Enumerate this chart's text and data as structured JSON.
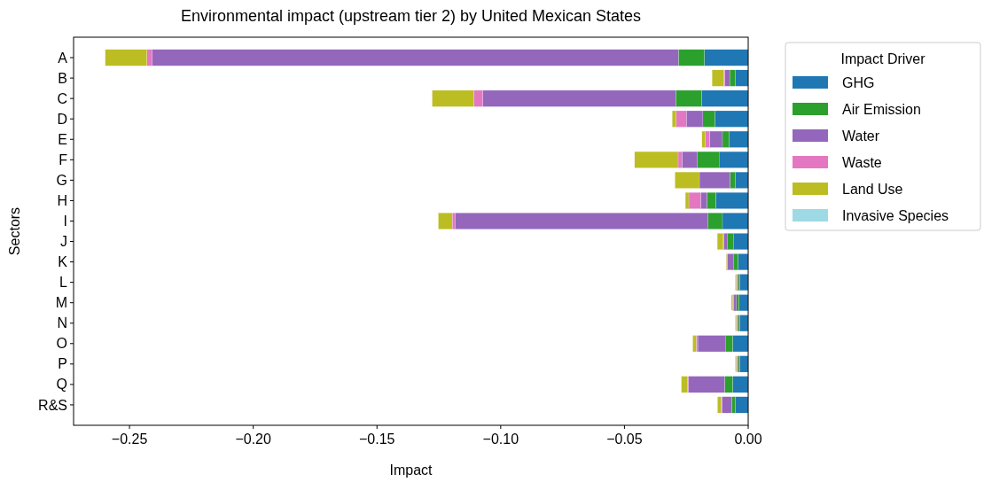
{
  "chart_data": {
    "type": "bar",
    "orientation": "horizontal",
    "stacked": true,
    "title": "Environmental impact (upstream tier 2) by United Mexican States",
    "xlabel": "Impact",
    "ylabel": "Sectors",
    "legend_title": "Impact Driver",
    "legend": "right",
    "grid": false,
    "categories": [
      "A",
      "B",
      "C",
      "D",
      "E",
      "F",
      "G",
      "H",
      "I",
      "J",
      "K",
      "L",
      "M",
      "N",
      "O",
      "P",
      "Q",
      "R&S"
    ],
    "xlim": [
      -0.2726,
      0
    ],
    "xticks": [
      {
        "value": -0.25,
        "label": "−0.25"
      },
      {
        "value": -0.2,
        "label": "−0.20"
      },
      {
        "value": -0.15,
        "label": "−0.15"
      },
      {
        "value": -0.1,
        "label": "−0.10"
      },
      {
        "value": -0.05,
        "label": "−0.05"
      },
      {
        "value": 0,
        "label": "0.00"
      }
    ],
    "series": [
      {
        "name": "GHG",
        "color": "#1f77b4",
        "values": [
          -0.0177,
          -0.0053,
          -0.0188,
          -0.0135,
          -0.0078,
          -0.0115,
          -0.0053,
          -0.0131,
          -0.0104,
          -0.0058,
          -0.0041,
          -0.0034,
          -0.0037,
          -0.0034,
          -0.0063,
          -0.0034,
          -0.0063,
          -0.0053
        ]
      },
      {
        "name": "Air Emission",
        "color": "#2ca02c",
        "values": [
          -0.0105,
          -0.0022,
          -0.0105,
          -0.0048,
          -0.0026,
          -0.009,
          -0.002,
          -0.0036,
          -0.0058,
          -0.0025,
          -0.0017,
          -0.0006,
          -0.001,
          -0.0006,
          -0.0027,
          -0.0006,
          -0.0032,
          -0.0014
        ]
      },
      {
        "name": "Water",
        "color": "#9467bd",
        "values": [
          -0.2126,
          -0.002,
          -0.078,
          -0.0067,
          -0.0052,
          -0.0062,
          -0.0124,
          -0.0025,
          -0.1023,
          -0.0016,
          -0.0026,
          -0.0006,
          -0.0011,
          -0.0006,
          -0.0114,
          -0.0006,
          -0.0147,
          -0.0038
        ]
      },
      {
        "name": "Waste",
        "color": "#e377c2",
        "values": [
          -0.0022,
          -0.0004,
          -0.0036,
          -0.0041,
          -0.0017,
          -0.0016,
          0,
          -0.0048,
          -0.0011,
          -0.0002,
          -0.0003,
          -0.0002,
          -0.0005,
          -0.0002,
          -0.0006,
          -0.0002,
          -0.0004,
          -0.0005
        ]
      },
      {
        "name": "Land Use",
        "color": "#bcbd22",
        "values": [
          -0.0168,
          -0.0047,
          -0.0168,
          -0.0016,
          -0.0014,
          -0.0176,
          -0.0099,
          -0.0014,
          -0.0056,
          -0.0024,
          -0.0002,
          -0.0004,
          -0.0005,
          -0.0004,
          -0.0014,
          -0.0004,
          -0.0024,
          -0.0014
        ]
      },
      {
        "name": "Invasive Species",
        "color": "#9edae5",
        "values": [
          0,
          0,
          0,
          0,
          0,
          0,
          0,
          0,
          0,
          0,
          0,
          0,
          0,
          0,
          0,
          0,
          0,
          0
        ]
      }
    ]
  }
}
